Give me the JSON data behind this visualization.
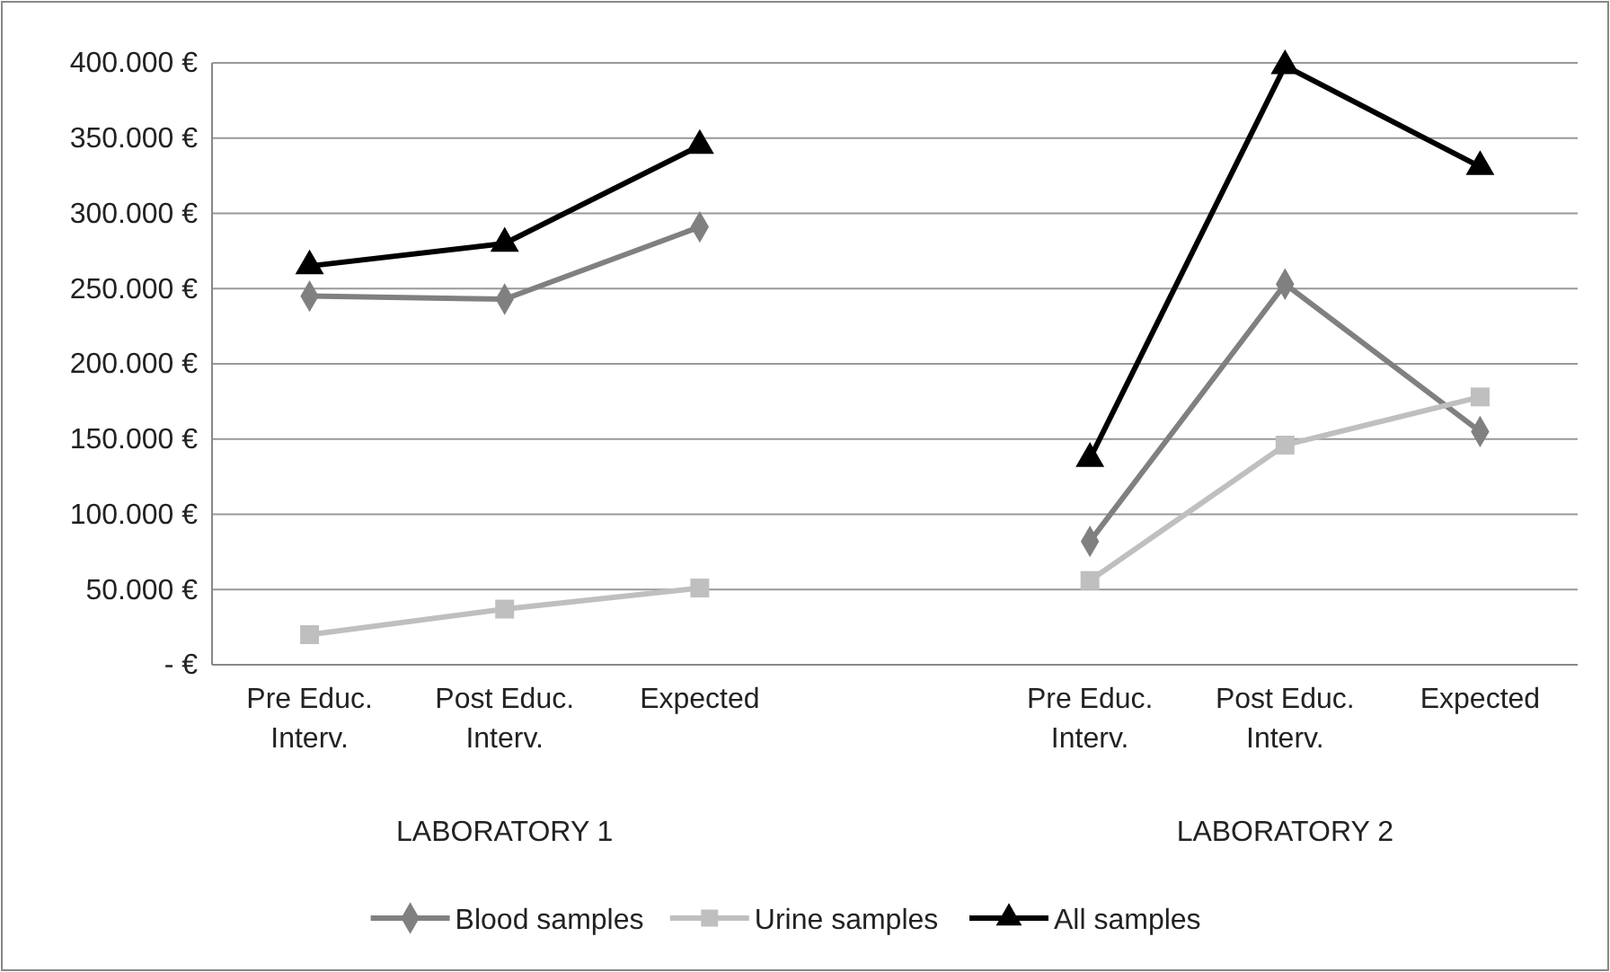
{
  "chart_data": {
    "type": "line",
    "categories": [
      "Pre Educ. Interv.",
      "Post Educ. Interv.",
      "Expected",
      null,
      "Pre Educ. Interv.",
      "Post Educ. Interv.",
      "Expected"
    ],
    "series": [
      {
        "name": "Blood samples",
        "color": "#808080",
        "marker": "diamond",
        "values": [
          245000,
          243000,
          291000,
          null,
          82000,
          253000,
          155000
        ]
      },
      {
        "name": "Urine samples",
        "color": "#bfbfbf",
        "marker": "square",
        "values": [
          20000,
          37000,
          51000,
          null,
          56000,
          146000,
          178000
        ]
      },
      {
        "name": "All samples",
        "color": "#000000",
        "marker": "triangle",
        "values": [
          265000,
          280000,
          345000,
          null,
          137000,
          398000,
          331000
        ]
      }
    ],
    "ylim": [
      0,
      400000
    ],
    "yticks": [
      {
        "value": 0,
        "label": "- €"
      },
      {
        "value": 50000,
        "label": "50.000 €"
      },
      {
        "value": 100000,
        "label": "100.000 €"
      },
      {
        "value": 150000,
        "label": "150.000 €"
      },
      {
        "value": 200000,
        "label": "200.000 €"
      },
      {
        "value": 250000,
        "label": "250.000 €"
      },
      {
        "value": 300000,
        "label": "300.000 €"
      },
      {
        "value": 350000,
        "label": "350.000 €"
      },
      {
        "value": 400000,
        "label": "400.000 €"
      }
    ],
    "annotations": [
      "LABORATORY 1",
      "LABORATORY 2"
    ],
    "grid": "y",
    "legend": "bottom",
    "line_style": "solid"
  }
}
